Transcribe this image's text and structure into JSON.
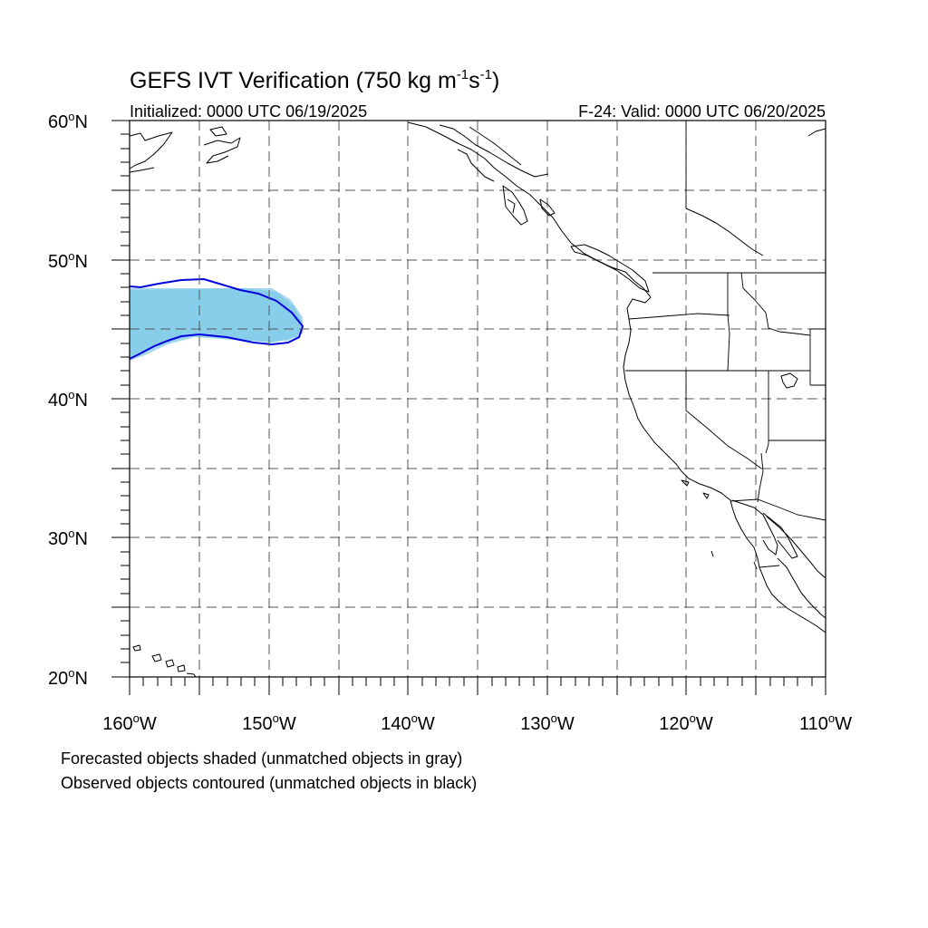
{
  "title": {
    "main": "GEFS IVT Verification (750 kg m",
    "sup1": "-1",
    "mid": "s",
    "sup2": "-1",
    "close": ")"
  },
  "initialized": "Initialized: 0000 UTC 06/19/2025",
  "valid": "F-24: Valid: 0000 UTC 06/20/2025",
  "lat_labels": [
    {
      "value": 60,
      "text": "60",
      "hemi": "N"
    },
    {
      "value": 50,
      "text": "50",
      "hemi": "N"
    },
    {
      "value": 40,
      "text": "40",
      "hemi": "N"
    },
    {
      "value": 30,
      "text": "30",
      "hemi": "N"
    },
    {
      "value": 20,
      "text": "20",
      "hemi": "N"
    }
  ],
  "lon_labels": [
    {
      "value": -160,
      "text": "160",
      "hemi": "W"
    },
    {
      "value": -150,
      "text": "150",
      "hemi": "W"
    },
    {
      "value": -140,
      "text": "140",
      "hemi": "W"
    },
    {
      "value": -130,
      "text": "130",
      "hemi": "W"
    },
    {
      "value": -120,
      "text": "120",
      "hemi": "W"
    },
    {
      "value": -110,
      "text": "110",
      "hemi": "W"
    }
  ],
  "footer": {
    "line1": "Forecasted objects shaded (unmatched objects in gray)",
    "line2": "Observed objects contoured (unmatched objects in black)"
  },
  "colors": {
    "forecast_fill": "#87ceeb",
    "forecast_fill_edge": "#a8d8f0",
    "observed_contour": "#0000dd",
    "grid": "#555555"
  },
  "map_extent": {
    "lon_min": -160,
    "lon_max": -110,
    "lat_min": 20,
    "lat_max": 60
  }
}
